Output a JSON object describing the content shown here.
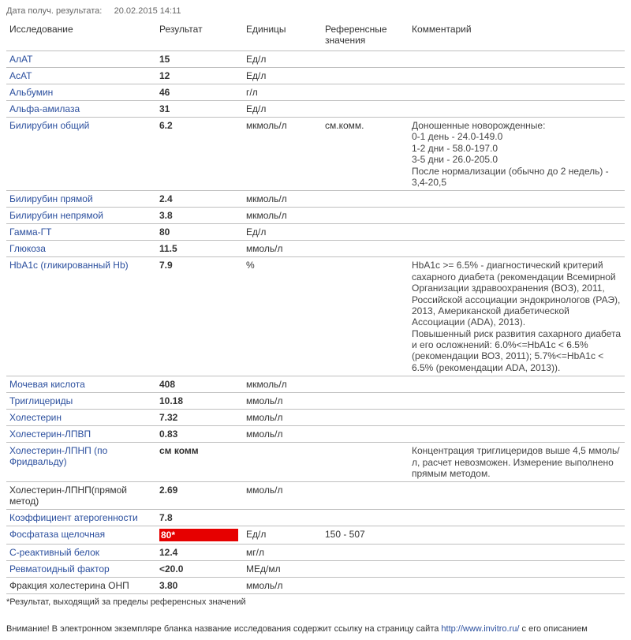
{
  "topline_label": "Дата получ. результата:",
  "topline_value": "20.02.2015 14:11",
  "headers": {
    "name": "Исследование",
    "result": "Результат",
    "units": "Единицы",
    "ref": "Референсные значения",
    "comment": "Комментарий"
  },
  "rows": [
    {
      "name": "АлАТ",
      "link": true,
      "result": "15",
      "units": "Ед/л",
      "ref": "",
      "comment": ""
    },
    {
      "name": "АсАТ",
      "link": true,
      "result": "12",
      "units": "Ед/л",
      "ref": "",
      "comment": ""
    },
    {
      "name": "Альбумин",
      "link": true,
      "result": "46",
      "units": "г/л",
      "ref": "",
      "comment": ""
    },
    {
      "name": "Альфа-амилаза",
      "link": true,
      "result": "31",
      "units": "Ед/л",
      "ref": "",
      "comment": ""
    },
    {
      "name": "Билирубин общий",
      "link": true,
      "result": "6.2",
      "units": "мкмоль/л",
      "ref": "см.комм.",
      "comment": "Доношенные новорожденные:\n0-1 день - 24.0-149.0\n1-2 дни - 58.0-197.0\n3-5 дни - 26.0-205.0\nПосле нормализации (обычно до 2 недель) - 3,4-20,5"
    },
    {
      "name": "Билирубин прямой",
      "link": true,
      "result": "2.4",
      "units": "мкмоль/л",
      "ref": "",
      "comment": ""
    },
    {
      "name": "Билирубин непрямой",
      "link": true,
      "result": "3.8",
      "units": "мкмоль/л",
      "ref": "",
      "comment": ""
    },
    {
      "name": "Гамма-ГТ",
      "link": true,
      "result": "80",
      "units": "Ед/л",
      "ref": "",
      "comment": ""
    },
    {
      "name": "Глюкоза",
      "link": true,
      "result": "11.5",
      "units": "ммоль/л",
      "ref": "",
      "comment": ""
    },
    {
      "name": "HbA1c (гликированный Hb)",
      "link": true,
      "result": "7.9",
      "units": "%",
      "ref": "",
      "comment": "HbA1c >= 6.5% - диагностический критерий сахарного диабета (рекомендации Всемирной Организации здравоохранения (ВОЗ), 2011, Российской ассоциации эндокринологов (РАЭ), 2013, Американской диабетической Ассоциации (ADA), 2013).\nПовышенный риск развития сахарного диабета и его осложнений: 6.0%<=HbA1c < 6.5% (рекомендации ВОЗ, 2011); 5.7%<=HbA1c < 6.5% (рекомендации ADA, 2013))."
    },
    {
      "name": "Мочевая кислота",
      "link": true,
      "result": "408",
      "units": "мкмоль/л",
      "ref": "",
      "comment": ""
    },
    {
      "name": "Триглицериды",
      "link": true,
      "result": "10.18",
      "units": "ммоль/л",
      "ref": "",
      "comment": ""
    },
    {
      "name": "Холестерин",
      "link": true,
      "result": "7.32",
      "units": "ммоль/л",
      "ref": "",
      "comment": ""
    },
    {
      "name": "Холестерин-ЛПВП",
      "link": true,
      "result": "0.83",
      "units": "ммоль/л",
      "ref": "",
      "comment": ""
    },
    {
      "name": "Холестерин-ЛПНП (по Фридвальду)",
      "link": true,
      "result": "см комм",
      "units": "",
      "ref": "",
      "comment": "Концентрация триглицеридов выше 4,5 ммоль/л, расчет невозможен. Измерение выполнено прямым методом."
    },
    {
      "name": "Холестерин-ЛПНП(прямой метод)",
      "link": false,
      "result": "2.69",
      "units": "ммоль/л",
      "ref": "",
      "comment": ""
    },
    {
      "name": "Коэффициент атерогенности",
      "link": true,
      "result": "7.8",
      "units": "",
      "ref": "",
      "comment": ""
    },
    {
      "name": "Фосфатаза щелочная",
      "link": true,
      "result": "80*",
      "flagged": true,
      "units": "Ед/л",
      "ref": "150 - 507",
      "comment": ""
    },
    {
      "name": "С-реактивный белок",
      "link": true,
      "result": "12.4",
      "units": "мг/л",
      "ref": "",
      "comment": ""
    },
    {
      "name": "Ревматоидный фактор",
      "link": true,
      "result": "<20.0",
      "units": "МЕд/мл",
      "ref": "",
      "comment": ""
    },
    {
      "name": "Фракция холестерина ОНП",
      "link": false,
      "result": "3.80",
      "units": "ммоль/л",
      "ref": "",
      "comment": ""
    }
  ],
  "footnote": "*Результат, выходящий за пределы референсных значений",
  "disclaimer_prefix": "Внимание! В электронном экземпляре бланка название исследования содержит ссылку на страницу сайта ",
  "disclaimer_url": "http://www.invitro.ru/",
  "disclaimer_suffix": " с его описанием"
}
